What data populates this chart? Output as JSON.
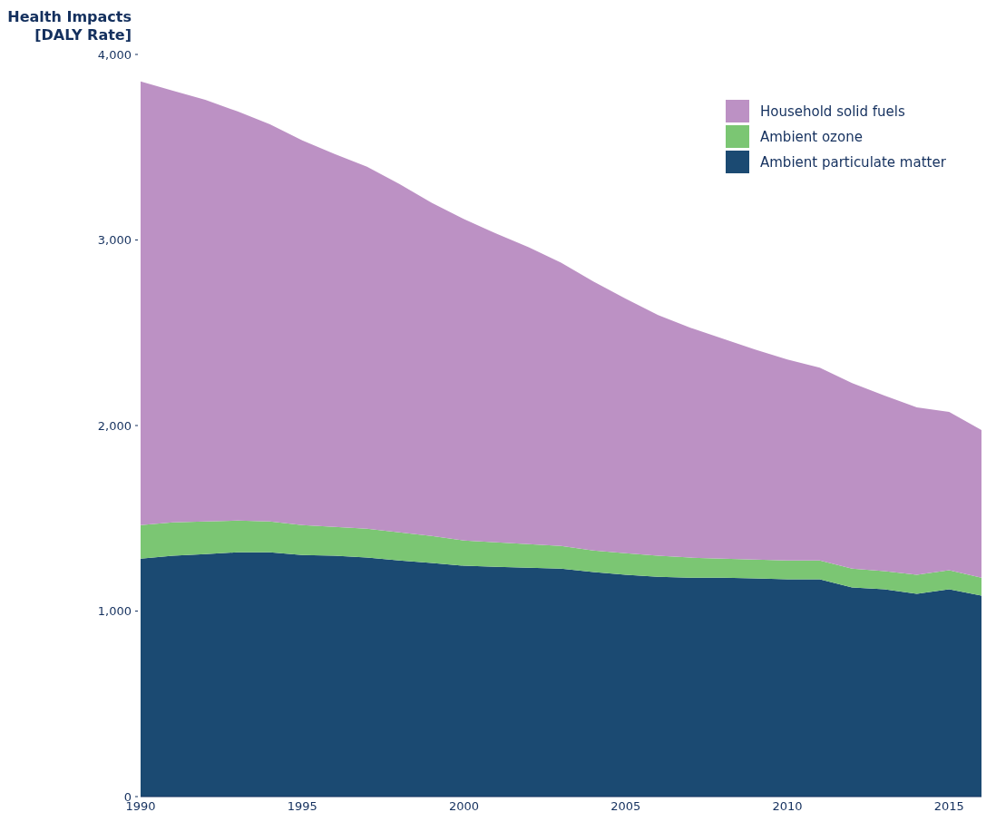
{
  "chart_data": {
    "type": "area",
    "stacked": true,
    "ylabel": "Health Impacts\n[DALY Rate]",
    "x": [
      1990,
      1991,
      1992,
      1993,
      1994,
      1995,
      1996,
      1997,
      1998,
      1999,
      2000,
      2001,
      2002,
      2003,
      2004,
      2005,
      2006,
      2007,
      2008,
      2009,
      2010,
      2011,
      2012,
      2013,
      2014,
      2015,
      2016
    ],
    "series": [
      {
        "name": "Ambient particulate matter",
        "color": "#1b4a72",
        "values": [
          1283,
          1298,
          1307,
          1317,
          1317,
          1302,
          1298,
          1288,
          1273,
          1259,
          1244,
          1239,
          1234,
          1229,
          1210,
          1195,
          1185,
          1180,
          1180,
          1176,
          1171,
          1171,
          1127,
          1117,
          1093,
          1117,
          1083
        ]
      },
      {
        "name": "Ambient ozone",
        "color": "#7bc673",
        "values": [
          180,
          180,
          176,
          171,
          166,
          161,
          156,
          156,
          151,
          146,
          136,
          132,
          127,
          122,
          117,
          117,
          113,
          108,
          103,
          102,
          102,
          102,
          102,
          98,
          102,
          103,
          97
        ]
      },
      {
        "name": "Household solid fuels",
        "color": "#bc91c4",
        "values": [
          2391,
          2327,
          2273,
          2205,
          2141,
          2074,
          2009,
          1951,
          1878,
          1795,
          1732,
          1663,
          1600,
          1527,
          1449,
          1371,
          1297,
          1239,
          1185,
          1132,
          1083,
          1039,
          1000,
          946,
          903,
          853,
          796
        ]
      }
    ],
    "xlim": [
      1990,
      2016
    ],
    "xticks": [
      1990,
      1995,
      2000,
      2005,
      2010,
      2015
    ],
    "ylim": [
      0,
      4000
    ],
    "yticks": [
      0,
      {
        "value": 1000,
        "label": "1,000"
      },
      {
        "value": 2000,
        "label": "2,000"
      },
      {
        "value": 3000,
        "label": "3,000"
      },
      {
        "value": 4000,
        "label": "4,000"
      }
    ],
    "grid": false,
    "legend": "top right"
  }
}
